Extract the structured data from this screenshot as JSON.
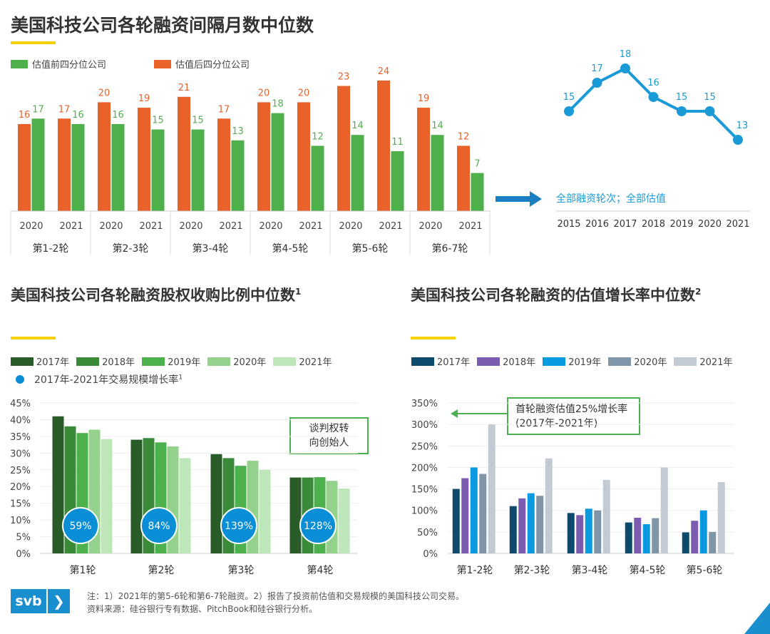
{
  "titles": {
    "top": "美国科技公司各轮融资间隔月数中位数",
    "bottom_left": "美国科技公司各轮融资股权收购比例中位数",
    "bottom_left_sup": "1",
    "bottom_right": "美国科技公司各轮融资的估值增长率中位数",
    "bottom_right_sup": "2"
  },
  "colors": {
    "orange": "#e8622a",
    "green": "#4db04a",
    "blue": "#1a9ad6",
    "yellow": "#f5d10a"
  },
  "chart_data": [
    {
      "type": "bar",
      "title": "美国科技公司各轮融资间隔月数中位数",
      "legend": [
        "估值前四分位公司",
        "估值后四分位公司"
      ],
      "groups": [
        "第1-2轮",
        "第2-3轮",
        "第3-4轮",
        "第4-5轮",
        "第5-6轮",
        "第6-7轮"
      ],
      "years": [
        "2020",
        "2021"
      ],
      "series": [
        {
          "name": "估值后四分位公司",
          "color": "#e8622a",
          "values": [
            16,
            17,
            20,
            19,
            21,
            17,
            20,
            20,
            23,
            24,
            19,
            12
          ]
        },
        {
          "name": "估值前四分位公司",
          "color": "#4db04a",
          "values": [
            17,
            16,
            16,
            15,
            15,
            13,
            18,
            12,
            14,
            11,
            14,
            7
          ]
        }
      ],
      "ylim": [
        0,
        25
      ]
    },
    {
      "type": "line",
      "label": "全部融资轮次；全部估值",
      "x": [
        "2015",
        "2016",
        "2017",
        "2018",
        "2019",
        "2020",
        "2021"
      ],
      "values": [
        15,
        17,
        18,
        16,
        15,
        15,
        13
      ],
      "color": "#1a9ad6"
    },
    {
      "type": "bar",
      "title": "美国科技公司各轮融资股权收购比例中位数",
      "legend": [
        "2017年",
        "2018年",
        "2019年",
        "2020年",
        "2021年"
      ],
      "colors": [
        "#2a5c29",
        "#3a8a3a",
        "#4cb04c",
        "#93d18d",
        "#bfe5ba"
      ],
      "bubble_legend": "2017年-2021年交易规模增长率",
      "bubble_legend_sup": "1",
      "categories": [
        "第1轮",
        "第2轮",
        "第3轮",
        "第4轮"
      ],
      "series": [
        {
          "name": "2017年",
          "values": [
            41,
            34,
            29.7,
            22.7
          ]
        },
        {
          "name": "2018年",
          "values": [
            38,
            34.5,
            28.5,
            22.7
          ]
        },
        {
          "name": "2019年",
          "values": [
            36,
            33.2,
            26.2,
            22.8
          ]
        },
        {
          "name": "2020年",
          "values": [
            37,
            32,
            27.7,
            21.7
          ]
        },
        {
          "name": "2021年",
          "values": [
            34.2,
            28.5,
            25,
            19.4
          ]
        }
      ],
      "growth": [
        "59%",
        "84%",
        "139%",
        "128%"
      ],
      "yticks": [
        "0%",
        "5%",
        "10%",
        "15%",
        "20%",
        "25%",
        "30%",
        "35%",
        "40%",
        "45%"
      ],
      "ylim": [
        0,
        45
      ],
      "annotation": [
        "谈判权转",
        "向创始人"
      ]
    },
    {
      "type": "bar",
      "title": "美国科技公司各轮融资的估值增长率中位数",
      "legend": [
        "2017年",
        "2018年",
        "2019年",
        "2020年",
        "2021年"
      ],
      "colors": [
        "#0d4a6b",
        "#7b5cb0",
        "#0a9ae0",
        "#7f95a8",
        "#c2cad4"
      ],
      "categories": [
        "第1-2轮",
        "第2-3轮",
        "第3-4轮",
        "第4-5轮",
        "第5-6轮"
      ],
      "series": [
        {
          "name": "2017年",
          "values": [
            150,
            110,
            94,
            72,
            49
          ]
        },
        {
          "name": "2018年",
          "values": [
            175,
            128,
            89,
            83,
            76
          ]
        },
        {
          "name": "2019年",
          "values": [
            200,
            140,
            104,
            68,
            100
          ]
        },
        {
          "name": "2020年",
          "values": [
            185,
            134,
            100,
            82,
            50
          ]
        },
        {
          "name": "2021年",
          "values": [
            300,
            221,
            171,
            200,
            166
          ]
        }
      ],
      "yticks": [
        "0%",
        "50%",
        "100%",
        "150%",
        "200%",
        "250%",
        "300%",
        "350%"
      ],
      "ylim": [
        0,
        350
      ],
      "annotation": [
        "首轮融资估值25%增长率",
        "(2017年-2021年)"
      ]
    }
  ],
  "footer": {
    "logo": "svb",
    "note": "注：1）2021年的第5-6轮和第6-7轮融资。2）报告了投资前估值和交易规模的美国科技公司交易。",
    "source": "资料来源：硅谷银行专有数据、PitchBook和硅谷银行分析。"
  }
}
